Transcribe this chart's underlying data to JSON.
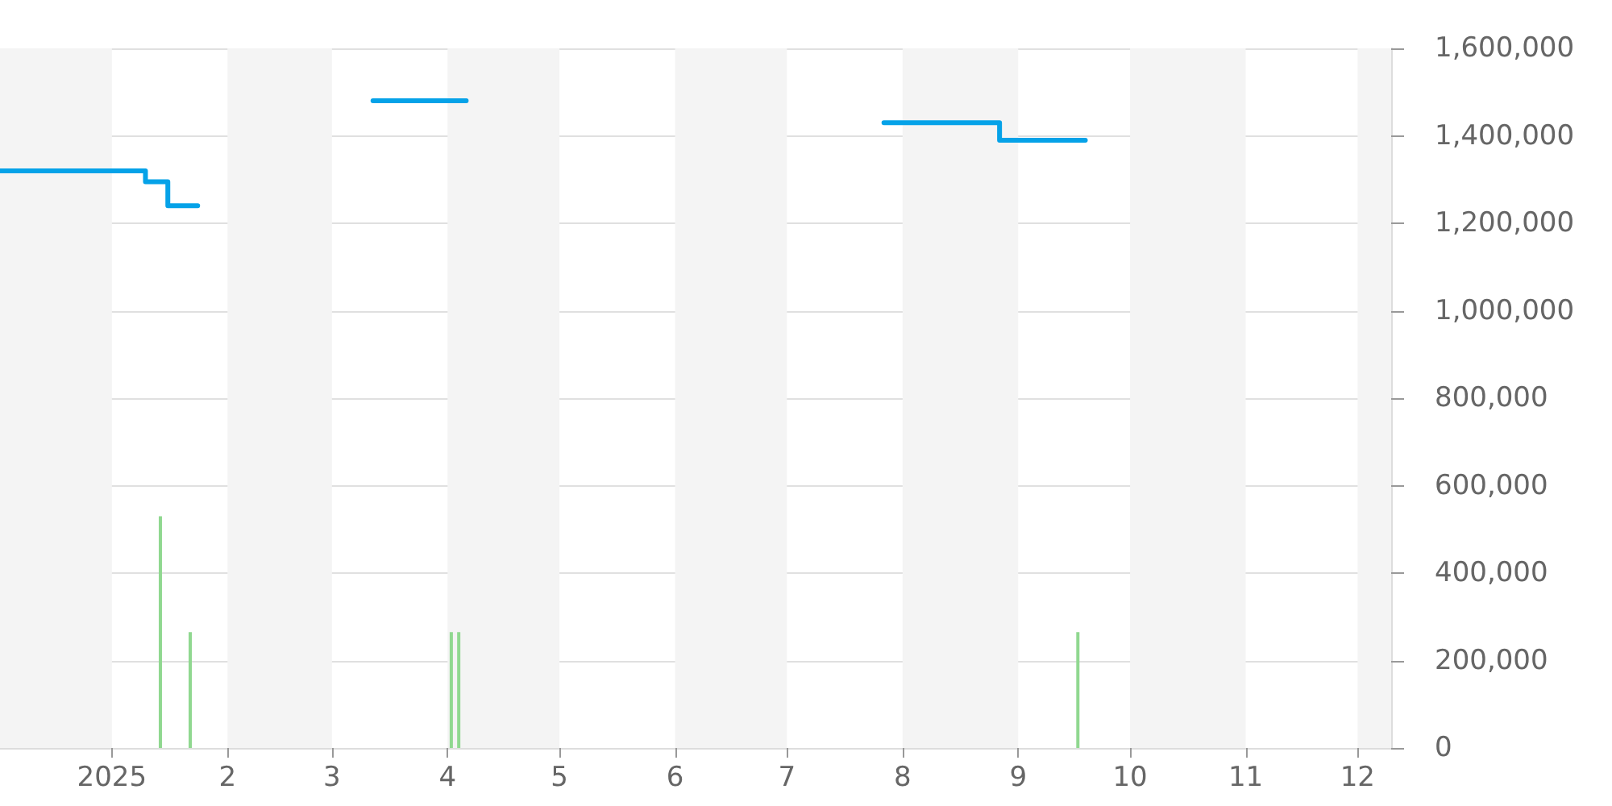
{
  "chart_data": {
    "type": "step",
    "marker": "none",
    "grid": "y",
    "xlim": [
      "2024-12-02",
      "2025-12-10"
    ],
    "xticks": [
      {
        "value": "2025-01-01",
        "label": "2025"
      },
      {
        "value": "2025-02-01",
        "label": "2"
      },
      {
        "value": "2025-03-01",
        "label": "3"
      },
      {
        "value": "2025-04-01",
        "label": "4"
      },
      {
        "value": "2025-05-01",
        "label": "5"
      },
      {
        "value": "2025-06-01",
        "label": "6"
      },
      {
        "value": "2025-07-01",
        "label": "7"
      },
      {
        "value": "2025-08-01",
        "label": "8"
      },
      {
        "value": "2025-09-01",
        "label": "9"
      },
      {
        "value": "2025-10-01",
        "label": "10"
      },
      {
        "value": "2025-11-01",
        "label": "11"
      },
      {
        "value": "2025-12-01",
        "label": "12"
      }
    ],
    "ylim": [
      0,
      1600000
    ],
    "yticks": [
      {
        "value": 0,
        "label": "0"
      },
      {
        "value": 200000,
        "label": "200,000"
      },
      {
        "value": 400000,
        "label": "400,000"
      },
      {
        "value": 600000,
        "label": "600,000"
      },
      {
        "value": 800000,
        "label": "800,000"
      },
      {
        "value": 1000000,
        "label": "1,000,000"
      },
      {
        "value": 1200000,
        "label": "1,200,000"
      },
      {
        "value": 1400000,
        "label": "1,400,000"
      },
      {
        "value": 1600000,
        "label": "1,600,000"
      }
    ],
    "bands": [
      {
        "axis": "x",
        "from": "2024-12-02",
        "to": "2025-01-01",
        "color": "#f4f4f4"
      },
      {
        "axis": "x",
        "from": "2025-02-01",
        "to": "2025-03-01",
        "color": "#f4f4f4"
      },
      {
        "axis": "x",
        "from": "2025-04-01",
        "to": "2025-05-01",
        "color": "#f4f4f4"
      },
      {
        "axis": "x",
        "from": "2025-06-01",
        "to": "2025-07-01",
        "color": "#f4f4f4"
      },
      {
        "axis": "x",
        "from": "2025-08-01",
        "to": "2025-09-01",
        "color": "#f4f4f4"
      },
      {
        "axis": "x",
        "from": "2025-10-01",
        "to": "2025-11-01",
        "color": "#f4f4f4"
      },
      {
        "axis": "x",
        "from": "2025-12-01",
        "to": "2025-12-10",
        "color": "#f4f4f4"
      }
    ],
    "series": [
      {
        "color": "#05a2e8",
        "x": [
          "2024-12-02",
          "2025-01-10",
          "2025-01-16",
          "2025-01-24"
        ],
        "values": [
          1320000,
          1295000,
          1240000,
          1240000
        ]
      },
      {
        "color": "#05a2e8",
        "x": [
          "2025-03-12",
          "2025-04-06"
        ],
        "values": [
          1480000,
          1480000
        ]
      },
      {
        "color": "#05a2e8",
        "x": [
          "2025-07-27",
          "2025-08-27",
          "2025-09-19"
        ],
        "values": [
          1430000,
          1390000,
          1390000
        ]
      },
      {
        "type": "bar",
        "color": "#90d890",
        "x": [
          "2025-01-14",
          "2025-01-22",
          "2025-04-02",
          "2025-04-04",
          "2025-09-17"
        ],
        "values": [
          530000,
          265000,
          265000,
          265000,
          265000
        ]
      }
    ]
  }
}
